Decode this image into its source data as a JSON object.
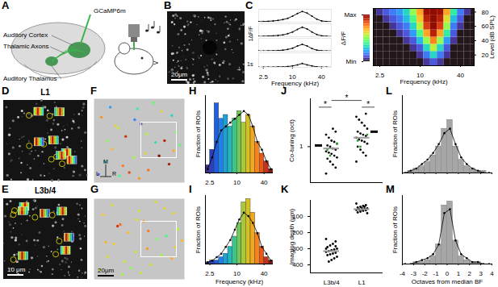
{
  "chart_data": [
    {
      "type": "schematic",
      "title": "A",
      "labels": [
        "GCaMP6m",
        "Auditory Cortex",
        "Thalamic Axons",
        "Auditory Thalamus"
      ]
    },
    {
      "type": "image",
      "title": "B",
      "scale_bar": "20μm"
    },
    {
      "type": "line",
      "title": "C",
      "x": [
        2,
        2.52,
        3.17,
        4,
        5.04,
        6.35,
        8,
        10.08,
        12.7,
        16,
        20.16,
        25.4,
        32,
        40.32,
        50.8,
        64
      ],
      "series": [
        {
          "color": "black",
          "values": [
            0.1,
            0.15,
            0.2,
            0.3,
            0.4,
            0.6,
            0.9,
            1.4,
            2.0,
            2.5,
            2.1,
            1.4,
            0.7,
            0.3,
            0.15,
            0.1
          ]
        },
        {
          "color": "black",
          "values": [
            0.05,
            0.1,
            0.15,
            0.2,
            0.3,
            0.4,
            0.7,
            1.1,
            1.7,
            2.2,
            1.8,
            1.1,
            0.5,
            0.2,
            0.1,
            0.05
          ]
        },
        {
          "color": "black",
          "values": [
            0.05,
            0.05,
            0.1,
            0.1,
            0.15,
            0.25,
            0.4,
            0.7,
            1.2,
            1.6,
            1.2,
            0.6,
            0.25,
            0.1,
            0.05,
            0.05
          ]
        },
        {
          "color": "black",
          "values": [
            0,
            0.05,
            0.05,
            0.05,
            0.1,
            0.1,
            0.15,
            0.3,
            0.5,
            0.8,
            0.5,
            0.3,
            0.1,
            0.05,
            0.05,
            0
          ]
        }
      ],
      "xlabel": "Frequency (kHz)",
      "log": "x",
      "xlim": [
        2,
        64
      ],
      "xticks": [
        2.5,
        10,
        40
      ],
      "ylim": [
        0,
        3
      ],
      "tick_labels": "x",
      "marker": "circle",
      "annotations": [
        "1ΔF/F",
        "1s"
      ]
    },
    {
      "type": "heatmap",
      "x": [
        2,
        2.52,
        3.17,
        4,
        5.04,
        6.35,
        8,
        10.08,
        12.7,
        16,
        20.16,
        25.4,
        32,
        40.32,
        50.8,
        64
      ],
      "y": [
        10,
        20,
        30,
        40,
        50,
        60,
        70,
        80
      ],
      "cells": [
        [
          0,
          0,
          0,
          0,
          0,
          0,
          0,
          0,
          0.05,
          0.1,
          0.05,
          0,
          0,
          0,
          0,
          0
        ],
        [
          0,
          0,
          0,
          0,
          0,
          0,
          0,
          0.05,
          0.15,
          0.3,
          0.15,
          0.05,
          0,
          0,
          0,
          0
        ],
        [
          0,
          0,
          0,
          0,
          0,
          0,
          0.05,
          0.1,
          0.3,
          0.55,
          0.3,
          0.1,
          0,
          0,
          0,
          0
        ],
        [
          0,
          0,
          0,
          0,
          0,
          0.05,
          0.1,
          0.25,
          0.5,
          0.75,
          0.5,
          0.2,
          0.05,
          0,
          0,
          0
        ],
        [
          0,
          0,
          0,
          0,
          0.05,
          0.1,
          0.2,
          0.4,
          0.7,
          0.9,
          0.7,
          0.35,
          0.1,
          0,
          0,
          0
        ],
        [
          0,
          0,
          0,
          0.05,
          0.1,
          0.15,
          0.3,
          0.55,
          0.85,
          1,
          0.85,
          0.5,
          0.15,
          0.05,
          0,
          0
        ],
        [
          0,
          0,
          0.05,
          0.1,
          0.15,
          0.25,
          0.4,
          0.65,
          0.9,
          1,
          0.9,
          0.6,
          0.25,
          0.1,
          0,
          0
        ],
        [
          0,
          0.05,
          0.1,
          0.15,
          0.2,
          0.3,
          0.5,
          0.7,
          0.95,
          1,
          0.95,
          0.7,
          0.35,
          0.15,
          0.05,
          0
        ]
      ],
      "xlabel": "Frequency (kHz)",
      "ylabel": "Level (dB SPL)",
      "log": "x",
      "xlim": [
        2,
        64
      ],
      "xticks": [
        2.5,
        10,
        40
      ],
      "ylim": [
        5,
        85
      ],
      "yticks": [
        20,
        40,
        60,
        80
      ],
      "colorbar": {
        "label": "ΔF/F",
        "range": [
          0,
          1
        ],
        "ticks": [
          {
            "value": 0,
            "label": "Min"
          },
          {
            "value": 1,
            "label": "Max"
          }
        ]
      }
    },
    {
      "type": "image",
      "title": "D",
      "label": "L1"
    },
    {
      "type": "image",
      "title": "E",
      "label": "L3b/4",
      "scale_bar": "10 μm"
    },
    {
      "type": "scatter",
      "title": "F",
      "x": [
        5,
        12,
        20,
        28,
        35,
        44,
        52,
        60,
        68,
        75,
        83,
        91,
        8,
        18,
        27,
        39,
        48,
        57,
        66,
        78,
        88,
        15,
        32,
        45,
        58,
        72,
        86,
        24,
        50,
        95
      ],
      "y": [
        10,
        25,
        40,
        8,
        55,
        30,
        70,
        15,
        48,
        85,
        22,
        60,
        78,
        90,
        65,
        12,
        88,
        35,
        95,
        50,
        38,
        50,
        20,
        75,
        58,
        32,
        80,
        68,
        5,
        45
      ],
      "values": [
        3,
        5,
        20,
        8,
        40,
        12,
        2.5,
        30,
        6,
        16,
        50,
        10,
        25,
        4,
        14,
        35,
        7,
        18,
        9,
        45,
        22,
        11,
        28,
        3.5,
        13,
        60,
        5.5,
        17,
        24,
        8.5
      ],
      "xlim": [
        0,
        100
      ],
      "ylim": [
        0,
        100
      ],
      "tick_labels": false,
      "annotations": [
        "M",
        "L",
        "R"
      ]
    },
    {
      "type": "scatter",
      "title": "G",
      "x": [
        7,
        15,
        22,
        31,
        38,
        46,
        55,
        63,
        70,
        78,
        86,
        93,
        10,
        20,
        29,
        41,
        50,
        59,
        68,
        80,
        90,
        13,
        34,
        47,
        60,
        74,
        88,
        26,
        52,
        97
      ],
      "y": [
        12,
        28,
        44,
        6,
        58,
        34,
        72,
        18,
        50,
        88,
        26,
        62,
        80,
        92,
        68,
        14,
        85,
        38,
        96,
        54,
        40,
        46,
        22,
        74,
        60,
        30,
        82,
        66,
        8,
        48
      ],
      "values": [
        14,
        16,
        18,
        12,
        20,
        15,
        25,
        16,
        10,
        17,
        22,
        13,
        19,
        16,
        30,
        11,
        15,
        24,
        16,
        8,
        18,
        21,
        14,
        16,
        28,
        12,
        17,
        40,
        15,
        20
      ],
      "xlim": [
        0,
        100
      ],
      "ylim": [
        0,
        100
      ],
      "tick_labels": false,
      "scale_bar": "20μm"
    },
    {
      "type": "histogram",
      "title": "H",
      "bins": [
        2,
        2.52,
        3.17,
        4,
        5.04,
        6.35,
        8,
        10.08,
        12.7,
        16,
        20.16,
        25.4,
        32,
        40.32,
        50.8,
        64
      ],
      "series": [
        {
          "type": "bar",
          "colors": [
            "#3b2a98",
            "#2b3fbf",
            "#1d5fe0",
            "#1e80e8",
            "#1ba0d8",
            "#20b8b8",
            "#3cc48c",
            "#73c85a",
            "#a8c838",
            "#d6c022",
            "#f2a81c",
            "#f58220",
            "#e85a1a",
            "#c8301a",
            "#8c1a10"
          ],
          "values": [
            0.02,
            0.06,
            0.18,
            0.14,
            0.15,
            0.12,
            0.14,
            0.16,
            0.13,
            0.15,
            0.12,
            0.08,
            0.05,
            0.03,
            0.01
          ]
        },
        {
          "type": "line",
          "color": "black",
          "marker": "circle",
          "values": [
            0.01,
            0.04,
            0.08,
            0.11,
            0.12,
            0.13,
            0.14,
            0.15,
            0.16,
            0.15,
            0.12,
            0.08,
            0.06,
            0.03,
            0.01
          ]
        }
      ],
      "ylabel": "Fraction of ROIs",
      "log": "x",
      "xlim": [
        2,
        64
      ],
      "xticks": [
        2.5,
        10,
        40
      ],
      "ylim": [
        0,
        0.2
      ],
      "tick_labels": "x"
    },
    {
      "type": "histogram",
      "title": "I",
      "bins": [
        2,
        2.52,
        3.17,
        4,
        5.04,
        6.35,
        8,
        10.08,
        12.7,
        16,
        20.16,
        25.4,
        32,
        40.32,
        50.8,
        64
      ],
      "series": [
        {
          "type": "bar",
          "colors": [
            "#3b2a98",
            "#2b3fbf",
            "#1d5fe0",
            "#1e80e8",
            "#1ba0d8",
            "#20b8b8",
            "#3cc48c",
            "#73c85a",
            "#a8c838",
            "#d6c022",
            "#f2a81c",
            "#f58220",
            "#e85a1a",
            "#c8301a",
            "#8c1a10"
          ],
          "values": [
            0.005,
            0.01,
            0.01,
            0.02,
            0.03,
            0.05,
            0.08,
            0.12,
            0.18,
            0.19,
            0.15,
            0.09,
            0.05,
            0.02,
            0.01
          ]
        },
        {
          "type": "line",
          "color": "black",
          "marker": "circle",
          "values": [
            0.005,
            0.01,
            0.02,
            0.03,
            0.05,
            0.07,
            0.1,
            0.13,
            0.15,
            0.14,
            0.12,
            0.09,
            0.05,
            0.03,
            0.01
          ]
        }
      ],
      "xlabel": "Frequency (kHz)",
      "ylabel": "Fraction of ROIs",
      "log": "x",
      "xlim": [
        2,
        64
      ],
      "xticks": [
        2.5,
        10,
        40
      ],
      "ylim": [
        0,
        0.2
      ],
      "tick_labels": "x"
    },
    {
      "type": "scatter",
      "title": "J",
      "categories": [
        null,
        null
      ],
      "series": [
        {
          "color": "black",
          "values": [
            [
              0.55,
              0.65,
              0.7,
              0.75,
              0.8,
              0.82,
              0.85,
              0.88,
              0.9,
              0.92,
              0.95,
              0.97,
              1.0,
              1.02,
              1.05,
              1.08,
              1.1,
              1.15,
              1.2,
              1.25,
              1.3
            ],
            [
              0.75,
              0.85,
              0.9,
              0.95,
              1.0,
              1.05,
              1.08,
              1.1,
              1.12,
              1.15,
              1.18,
              1.2,
              1.22,
              1.25,
              1.3,
              1.35,
              1.4,
              1.45,
              1.5,
              1.55
            ]
          ]
        },
        {
          "color": "#2ca02c",
          "values": [
            [
              0.85,
              0.95,
              1.05
            ],
            [
              1.0,
              1.1,
              1.2
            ]
          ]
        }
      ],
      "summary": [
        {
          "color": "#9a9a9a",
          "values": [
            0.97,
            1.15
          ]
        },
        {
          "color": "black",
          "values": [
            1.02,
            1.25
          ]
        }
      ],
      "ylabel": "Co-tuning (oct)",
      "ylim": [
        0.4,
        1.8
      ],
      "yticks": [
        1
      ],
      "tick_labels": "y",
      "annotations": [
        "*",
        "*",
        "*"
      ]
    },
    {
      "type": "scatter",
      "title": "K",
      "categories": [
        "L3b/4",
        "L1"
      ],
      "series": [
        {
          "color": "black",
          "values": [
            [
              240,
              255,
              270,
              280,
              290,
              300,
              305,
              310,
              315,
              320,
              325,
              330,
              335,
              340,
              350,
              360,
              370,
              380,
              300,
              285
            ],
            [
              20,
              30,
              35,
              40,
              45,
              50,
              52,
              55,
              58,
              60,
              62,
              65,
              70,
              75,
              80,
              40,
              48,
              55
            ]
          ]
        }
      ],
      "summary": [
        {
          "color": "#9a9a9a",
          "values": [
            315,
            55
          ]
        }
      ],
      "ylabel": "Imaging depth (μm)",
      "ylim": [
        450,
        0
      ],
      "yticks": [
        100,
        200,
        300,
        400
      ]
    },
    {
      "type": "histogram",
      "title": "L",
      "bins": [
        -4,
        -3.5,
        -3,
        -2.5,
        -2,
        -1.5,
        -1,
        -0.5,
        0,
        0.5,
        1,
        1.5,
        2,
        2.5,
        3,
        3.5,
        4
      ],
      "series": [
        {
          "type": "bar",
          "color": "#a6a6a6",
          "values": [
            0,
            0.01,
            0.02,
            0.03,
            0.05,
            0.08,
            0.12,
            0.2,
            0.24,
            0.12,
            0.06,
            0.03,
            0.02,
            0.01,
            0.01,
            0
          ]
        },
        {
          "type": "line",
          "color": "black",
          "marker": "circle",
          "values": [
            0,
            0.01,
            0.02,
            0.04,
            0.06,
            0.09,
            0.13,
            0.18,
            0.2,
            0.13,
            0.07,
            0.04,
            0.02,
            0.01,
            0,
            0
          ]
        }
      ],
      "ylabel": "Fraction of ROIs",
      "xlim": [
        -4,
        4
      ],
      "xticks": [
        -4,
        -3,
        -2,
        -1,
        0,
        1,
        2,
        3,
        4
      ],
      "ylim": [
        0,
        0.35
      ],
      "tick_labels": false
    },
    {
      "type": "histogram",
      "title": "M",
      "bins": [
        -4,
        -3.5,
        -3,
        -2.5,
        -2,
        -1.5,
        -1,
        -0.5,
        0,
        0.5,
        1,
        1.5,
        2,
        2.5,
        3,
        3.5,
        4
      ],
      "series": [
        {
          "type": "bar",
          "color": "#a6a6a6",
          "values": [
            0,
            0,
            0.01,
            0.01,
            0.02,
            0.04,
            0.1,
            0.3,
            0.32,
            0.12,
            0.04,
            0.02,
            0.01,
            0.01,
            0,
            0
          ]
        },
        {
          "type": "line",
          "color": "black",
          "marker": "circle",
          "values": [
            0,
            0,
            0.01,
            0.02,
            0.03,
            0.05,
            0.1,
            0.26,
            0.28,
            0.12,
            0.05,
            0.03,
            0.01,
            0.01,
            0,
            0
          ]
        }
      ],
      "xlabel": "Octaves from median BF",
      "ylabel": "Fraction of ROIs",
      "xlim": [
        -4,
        4
      ],
      "xticks": [
        -4,
        -3,
        -2,
        -1,
        0,
        1,
        2,
        3,
        4
      ],
      "ylim": [
        0,
        0.35
      ],
      "tick_labels": "x"
    }
  ]
}
